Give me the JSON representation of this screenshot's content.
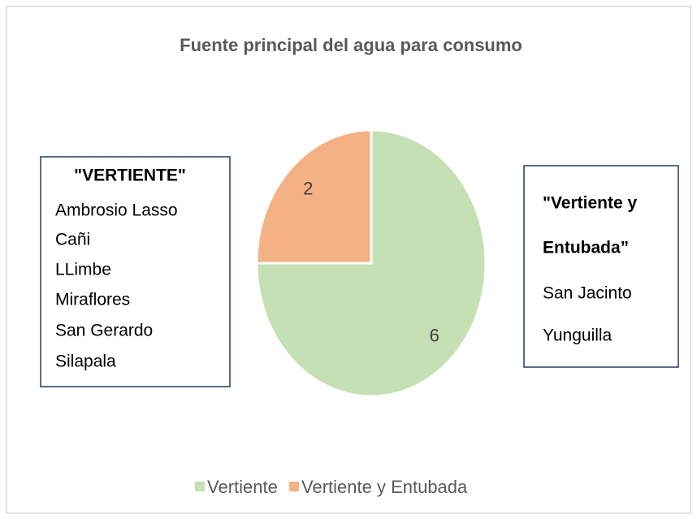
{
  "chart_data": {
    "type": "pie",
    "title": "Fuente principal del agua para consumo",
    "categories": [
      "Vertiente",
      "Vertiente y Entubada"
    ],
    "values": [
      6,
      2
    ],
    "colors": [
      "#c5e0b4",
      "#f4b183"
    ],
    "start_angle": 90,
    "direction": "clockwise",
    "legend": "bottom",
    "annotations": [
      {
        "title": [
          "\"VERTIENTE\""
        ],
        "lines": [
          "Ambrosio Lasso",
          "Cañi",
          "LLimbe",
          "Miraflores",
          "San Gerardo",
          "Silapala"
        ]
      },
      {
        "title": [
          "\"Vertiente y",
          "Entubada”"
        ],
        "lines": [
          "San Jacinto",
          "Yunguilla"
        ]
      }
    ]
  }
}
